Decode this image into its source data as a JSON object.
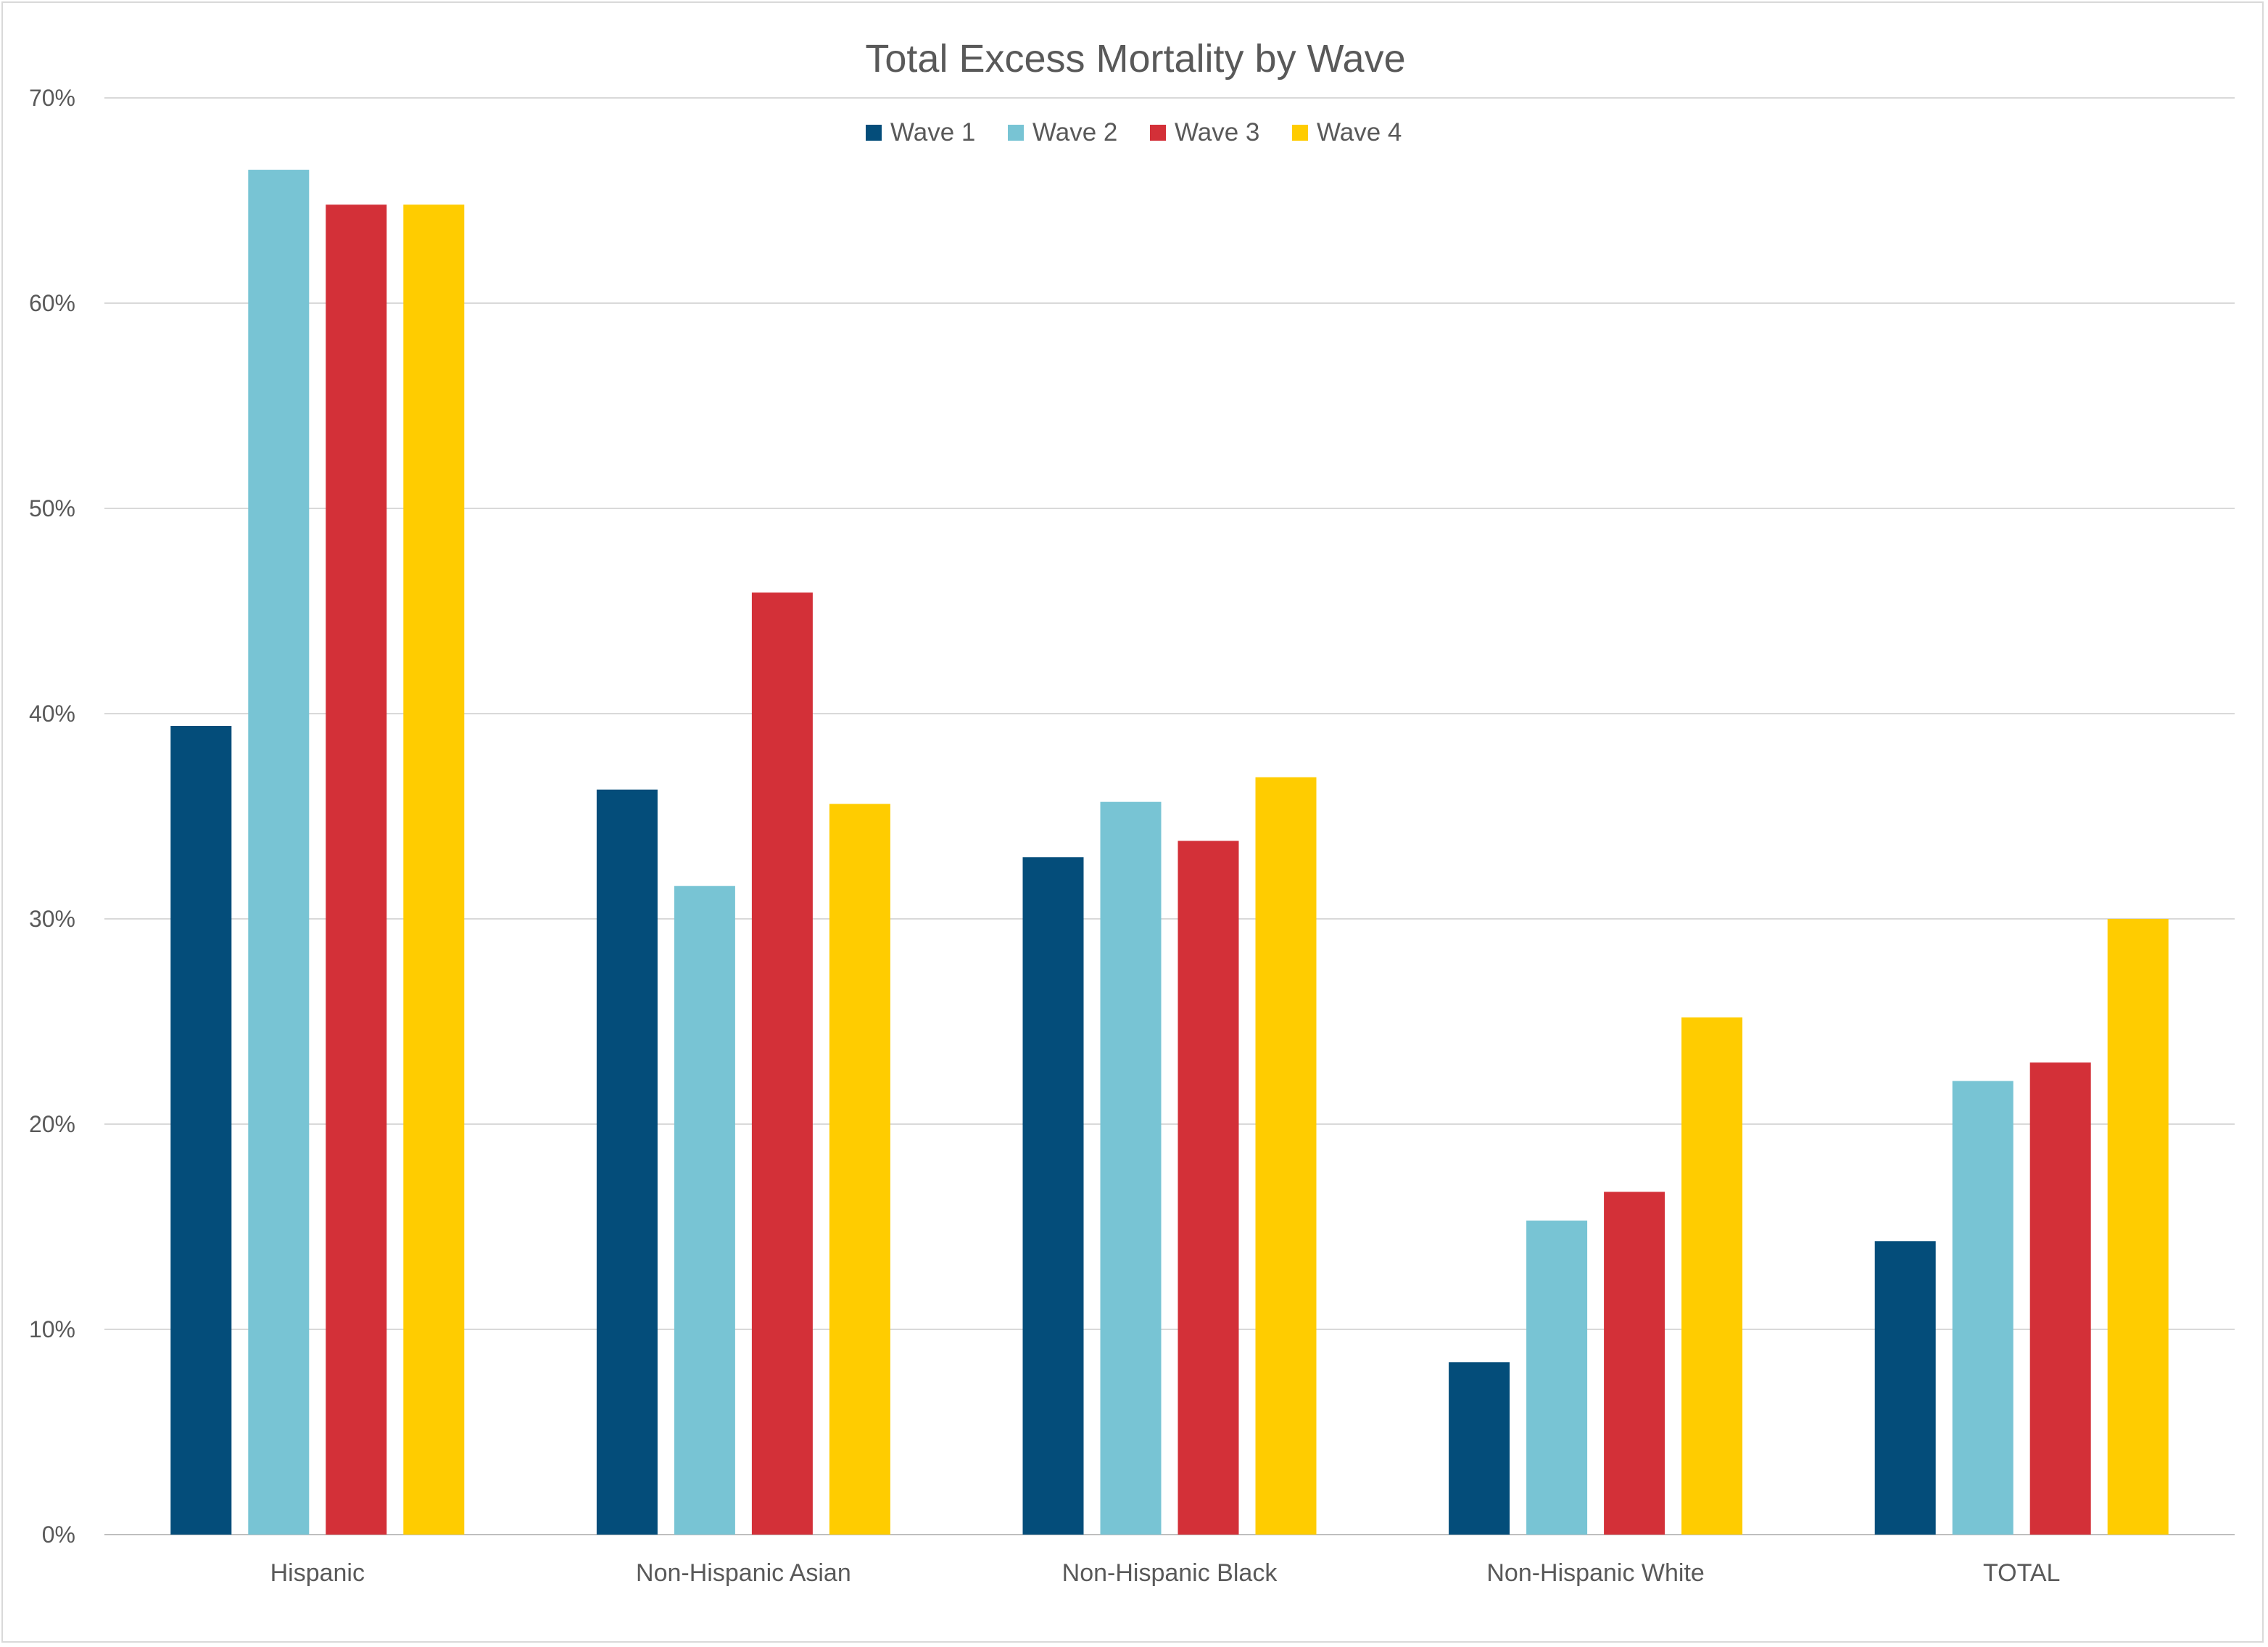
{
  "chart_data": {
    "type": "bar",
    "title": "Total Excess Mortality by Wave",
    "xlabel": "",
    "ylabel": "",
    "ylim": [
      0,
      70
    ],
    "y_unit": "%",
    "y_ticks": [
      "0%",
      "10%",
      "20%",
      "30%",
      "40%",
      "50%",
      "60%",
      "70%"
    ],
    "y_tick_values": [
      0,
      10,
      20,
      30,
      40,
      50,
      60,
      70
    ],
    "grid": true,
    "legend_position": "top-center",
    "categories": [
      "Hispanic",
      "Non-Hispanic Asian",
      "Non-Hispanic Black",
      "Non-Hispanic White",
      "TOTAL"
    ],
    "series": [
      {
        "name": "Wave 1",
        "color": "#044D7A",
        "values": [
          39.4,
          36.3,
          33.0,
          8.4,
          14.3
        ]
      },
      {
        "name": "Wave 2",
        "color": "#78C4D4",
        "values": [
          66.5,
          31.6,
          35.7,
          15.3,
          22.1
        ]
      },
      {
        "name": "Wave 3",
        "color": "#D33038",
        "values": [
          64.8,
          45.9,
          33.8,
          16.7,
          23.0
        ]
      },
      {
        "name": "Wave 4",
        "color": "#FFCC00",
        "values": [
          64.8,
          35.6,
          36.9,
          25.2,
          30.0
        ]
      }
    ]
  }
}
